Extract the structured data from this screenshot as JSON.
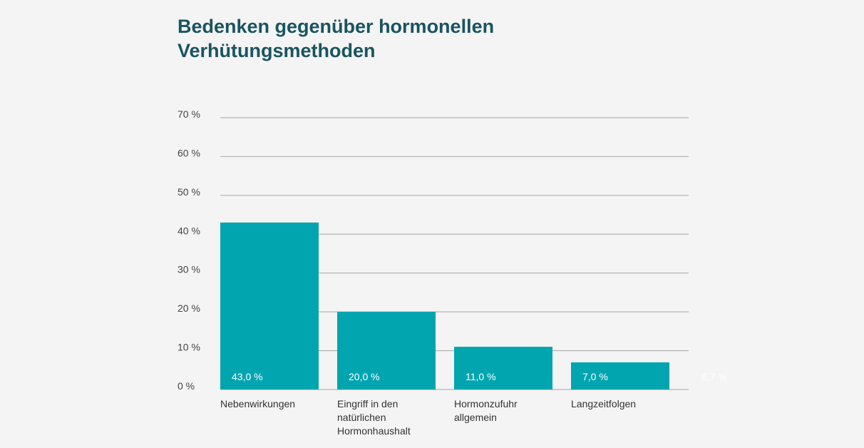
{
  "chart_data": {
    "type": "bar",
    "title": "Bedenken gegenüber hormonellen Verhütungsmethoden",
    "xlabel": "",
    "ylabel": "",
    "ylim": [
      0,
      70
    ],
    "grid": true,
    "y_ticks": [
      "0 %",
      "10 %",
      "20 %",
      "30 %",
      "40 %",
      "50 %",
      "60 %",
      "70 %"
    ],
    "categories": [
      [
        "Nebenwirkungen"
      ],
      [
        "Eingriff in den",
        "natürlichen",
        "Hormonhaushalt"
      ],
      [
        "Hormonzufuhr",
        "allgemein"
      ],
      [
        "Langzeitfolgen"
      ]
    ],
    "values": [
      43,
      20,
      11,
      7
    ],
    "value_labels": [
      "43,0 %",
      "20,0 %",
      "11,0 %",
      "7,0 %"
    ],
    "extra_value_label": "6,7 %",
    "colors": {
      "bar": "#00a5b0",
      "title": "#1a5460",
      "grid": "#a6a6a6"
    }
  }
}
